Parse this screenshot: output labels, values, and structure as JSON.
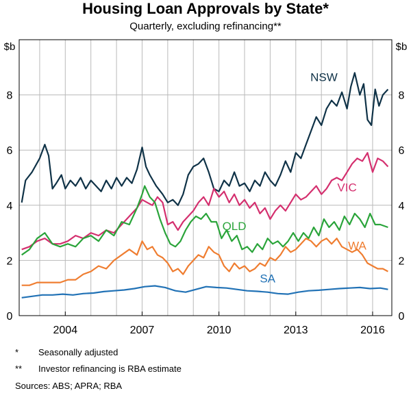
{
  "chart_data": {
    "type": "line",
    "title": "Housing Loan Approvals by State*",
    "subtitle": "Quarterly, excluding refinancing**",
    "ylabel_left": "$b",
    "ylabel_right": "$b",
    "ylim": [
      0,
      10
    ],
    "yticks": [
      0,
      2,
      4,
      6,
      8
    ],
    "xlim": [
      2002.2,
      2016.75
    ],
    "xticks": [
      2004,
      2007,
      2010,
      2013,
      2016
    ],
    "xtick_labels": [
      "2004",
      "2007",
      "2010",
      "2013",
      "2016"
    ],
    "grid": true,
    "series": [
      {
        "name": "NSW",
        "color": "#0f3247",
        "label_pos": [
          2014.1,
          8.5
        ],
        "x": [
          2002.3,
          2002.45,
          2002.7,
          2003.0,
          2003.2,
          2003.35,
          2003.5,
          2003.65,
          2003.85,
          2004.0,
          2004.2,
          2004.4,
          2004.6,
          2004.8,
          2005.0,
          2005.2,
          2005.4,
          2005.6,
          2005.8,
          2006.0,
          2006.2,
          2006.4,
          2006.6,
          2006.8,
          2007.0,
          2007.15,
          2007.3,
          2007.55,
          2007.8,
          2008.0,
          2008.2,
          2008.4,
          2008.6,
          2008.8,
          2009.0,
          2009.2,
          2009.4,
          2009.6,
          2009.8,
          2010.0,
          2010.2,
          2010.4,
          2010.6,
          2010.8,
          2011.0,
          2011.2,
          2011.4,
          2011.6,
          2011.8,
          2012.0,
          2012.2,
          2012.4,
          2012.6,
          2012.8,
          2013.0,
          2013.2,
          2013.4,
          2013.6,
          2013.8,
          2014.0,
          2014.2,
          2014.4,
          2014.6,
          2014.8,
          2015.0,
          2015.15,
          2015.3,
          2015.5,
          2015.65,
          2015.8,
          2015.95,
          2016.1,
          2016.25,
          2016.4,
          2016.6
        ],
        "y": [
          4.1,
          4.9,
          5.2,
          5.7,
          6.2,
          5.8,
          4.6,
          4.8,
          5.1,
          4.6,
          4.9,
          4.7,
          5.0,
          4.6,
          4.9,
          4.7,
          4.5,
          4.9,
          4.6,
          5.0,
          4.7,
          5.0,
          4.8,
          5.3,
          6.1,
          5.4,
          5.1,
          4.7,
          4.4,
          4.1,
          4.2,
          4.0,
          4.4,
          5.1,
          5.4,
          5.5,
          5.7,
          5.2,
          4.6,
          4.5,
          4.9,
          4.7,
          5.2,
          4.7,
          4.8,
          4.5,
          4.9,
          4.7,
          5.2,
          4.9,
          4.7,
          5.1,
          5.6,
          5.2,
          5.9,
          5.7,
          6.2,
          6.7,
          7.2,
          6.9,
          7.5,
          7.8,
          7.6,
          8.1,
          7.5,
          8.3,
          8.8,
          8.0,
          8.4,
          7.1,
          6.9,
          8.2,
          7.6,
          8.0,
          8.2
        ]
      },
      {
        "name": "VIC",
        "color": "#d42f6e",
        "label_pos": [
          2015.0,
          4.5
        ],
        "x": [
          2002.3,
          2002.6,
          2002.9,
          2003.2,
          2003.5,
          2003.8,
          2004.1,
          2004.4,
          2004.7,
          2005.0,
          2005.3,
          2005.6,
          2005.9,
          2006.2,
          2006.5,
          2006.8,
          2007.0,
          2007.2,
          2007.4,
          2007.6,
          2007.8,
          2008.0,
          2008.2,
          2008.4,
          2008.6,
          2008.8,
          2009.0,
          2009.2,
          2009.4,
          2009.6,
          2009.8,
          2010.0,
          2010.2,
          2010.4,
          2010.6,
          2010.8,
          2011.0,
          2011.2,
          2011.4,
          2011.6,
          2011.8,
          2012.0,
          2012.2,
          2012.4,
          2012.6,
          2012.8,
          2013.0,
          2013.2,
          2013.4,
          2013.6,
          2013.8,
          2014.0,
          2014.2,
          2014.4,
          2014.6,
          2014.8,
          2015.0,
          2015.2,
          2015.4,
          2015.6,
          2015.8,
          2016.0,
          2016.2,
          2016.4,
          2016.6
        ],
        "y": [
          2.4,
          2.5,
          2.7,
          2.8,
          2.6,
          2.6,
          2.7,
          2.9,
          2.8,
          3.0,
          2.9,
          3.1,
          3.0,
          3.3,
          3.6,
          3.9,
          4.2,
          4.1,
          4.0,
          4.3,
          4.1,
          3.3,
          3.4,
          3.1,
          3.4,
          3.6,
          3.8,
          4.1,
          4.3,
          4.0,
          4.6,
          4.3,
          4.5,
          4.1,
          4.4,
          4.0,
          4.2,
          3.9,
          4.1,
          3.7,
          3.9,
          3.5,
          3.8,
          4.0,
          3.8,
          4.1,
          4.4,
          4.2,
          4.3,
          4.5,
          4.7,
          4.4,
          4.6,
          4.9,
          5.0,
          4.9,
          5.2,
          5.5,
          5.7,
          5.6,
          5.9,
          5.2,
          5.7,
          5.6,
          5.4
        ]
      },
      {
        "name": "QLD",
        "color": "#2aa43a",
        "label_pos": [
          2010.6,
          3.1
        ],
        "x": [
          2002.3,
          2002.6,
          2002.9,
          2003.2,
          2003.5,
          2003.8,
          2004.1,
          2004.4,
          2004.7,
          2005.0,
          2005.3,
          2005.6,
          2005.9,
          2006.2,
          2006.5,
          2006.8,
          2007.0,
          2007.1,
          2007.3,
          2007.5,
          2007.7,
          2007.9,
          2008.1,
          2008.3,
          2008.5,
          2008.7,
          2008.9,
          2009.1,
          2009.3,
          2009.5,
          2009.7,
          2009.9,
          2010.1,
          2010.3,
          2010.5,
          2010.7,
          2010.9,
          2011.1,
          2011.3,
          2011.5,
          2011.7,
          2011.9,
          2012.1,
          2012.3,
          2012.5,
          2012.7,
          2012.9,
          2013.1,
          2013.3,
          2013.5,
          2013.7,
          2013.9,
          2014.1,
          2014.3,
          2014.5,
          2014.7,
          2014.9,
          2015.1,
          2015.3,
          2015.5,
          2015.7,
          2015.9,
          2016.1,
          2016.3,
          2016.6
        ],
        "y": [
          2.2,
          2.4,
          2.8,
          3.0,
          2.6,
          2.5,
          2.6,
          2.5,
          2.8,
          2.9,
          2.7,
          3.1,
          2.9,
          3.4,
          3.3,
          3.9,
          4.4,
          4.7,
          4.3,
          4.1,
          3.5,
          3.0,
          2.6,
          2.5,
          2.7,
          3.1,
          3.4,
          3.6,
          3.5,
          3.7,
          3.4,
          3.4,
          2.8,
          3.1,
          2.7,
          2.9,
          2.4,
          2.5,
          2.3,
          2.6,
          2.4,
          2.8,
          2.6,
          2.7,
          2.5,
          2.7,
          3.0,
          2.7,
          3.0,
          2.8,
          3.2,
          2.9,
          3.5,
          3.2,
          3.4,
          3.1,
          3.6,
          3.3,
          3.7,
          3.5,
          3.2,
          3.7,
          3.3,
          3.3,
          3.2
        ]
      },
      {
        "name": "WA",
        "color": "#ef7d30",
        "label_pos": [
          2015.4,
          2.4
        ],
        "x": [
          2002.3,
          2002.6,
          2002.9,
          2003.2,
          2003.5,
          2003.8,
          2004.1,
          2004.4,
          2004.7,
          2005.0,
          2005.3,
          2005.6,
          2005.9,
          2006.2,
          2006.5,
          2006.8,
          2007.0,
          2007.2,
          2007.4,
          2007.6,
          2007.8,
          2008.0,
          2008.2,
          2008.4,
          2008.6,
          2008.8,
          2009.0,
          2009.2,
          2009.4,
          2009.6,
          2009.8,
          2010.0,
          2010.2,
          2010.4,
          2010.6,
          2010.8,
          2011.0,
          2011.2,
          2011.4,
          2011.6,
          2011.8,
          2012.0,
          2012.2,
          2012.4,
          2012.6,
          2012.8,
          2013.0,
          2013.2,
          2013.4,
          2013.6,
          2013.8,
          2014.0,
          2014.2,
          2014.4,
          2014.6,
          2014.8,
          2015.0,
          2015.2,
          2015.4,
          2015.6,
          2015.8,
          2016.0,
          2016.2,
          2016.4,
          2016.6
        ],
        "y": [
          1.1,
          1.1,
          1.2,
          1.2,
          1.2,
          1.2,
          1.3,
          1.3,
          1.5,
          1.6,
          1.8,
          1.7,
          2.0,
          2.2,
          2.4,
          2.2,
          2.7,
          2.4,
          2.5,
          2.2,
          2.1,
          1.9,
          1.6,
          1.7,
          1.5,
          1.8,
          2.0,
          2.2,
          2.1,
          2.5,
          2.3,
          2.2,
          1.8,
          1.6,
          1.9,
          1.7,
          1.8,
          1.6,
          1.7,
          1.9,
          1.8,
          2.1,
          2.0,
          2.2,
          2.5,
          2.3,
          2.4,
          2.6,
          2.8,
          2.7,
          2.5,
          2.7,
          2.8,
          2.6,
          2.8,
          2.5,
          2.4,
          2.3,
          2.4,
          2.2,
          1.9,
          1.8,
          1.7,
          1.7,
          1.6
        ]
      },
      {
        "name": "SA",
        "color": "#2071b5",
        "label_pos": [
          2011.9,
          1.2
        ],
        "x": [
          2002.3,
          2002.7,
          2003.1,
          2003.5,
          2003.9,
          2004.3,
          2004.7,
          2005.1,
          2005.5,
          2005.9,
          2006.3,
          2006.7,
          2007.1,
          2007.5,
          2007.9,
          2008.3,
          2008.7,
          2009.1,
          2009.5,
          2009.9,
          2010.3,
          2010.7,
          2011.1,
          2011.5,
          2011.9,
          2012.3,
          2012.7,
          2013.1,
          2013.5,
          2013.9,
          2014.3,
          2014.7,
          2015.1,
          2015.5,
          2015.9,
          2016.3,
          2016.6
        ],
        "y": [
          0.65,
          0.7,
          0.75,
          0.75,
          0.78,
          0.75,
          0.8,
          0.82,
          0.87,
          0.9,
          0.93,
          0.98,
          1.05,
          1.08,
          1.02,
          0.9,
          0.85,
          0.95,
          1.05,
          1.02,
          1.0,
          0.95,
          0.9,
          0.88,
          0.85,
          0.8,
          0.78,
          0.85,
          0.9,
          0.92,
          0.95,
          0.98,
          1.0,
          1.02,
          0.98,
          1.0,
          0.95
        ]
      }
    ]
  },
  "footnotes": [
    {
      "mark": "*",
      "text": "Seasonally adjusted"
    },
    {
      "mark": "**",
      "text": "Investor refinancing is RBA estimate"
    }
  ],
  "sources": "Sources:  ABS; APRA; RBA"
}
